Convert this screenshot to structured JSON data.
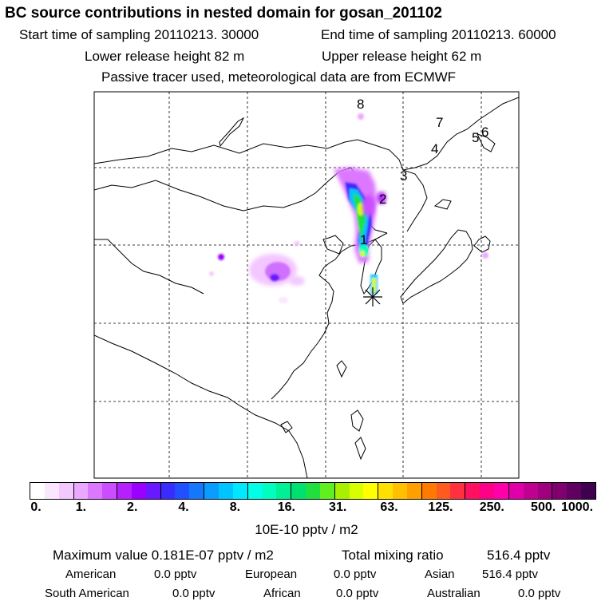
{
  "header": {
    "title": "BC  source contributions in nested domain for gosan_201102",
    "start_time": "Start time of sampling 20110213. 30000",
    "end_time": "End time of sampling 20110213. 60000",
    "lower_release": "Lower release height   82 m",
    "upper_release": "Upper release height   62 m",
    "tracer_note": "Passive tracer used, meteorological data are from ECMWF"
  },
  "map": {
    "trajectory_labels": [
      "8",
      "7",
      "6",
      "5",
      "4",
      "3",
      "2",
      "1"
    ],
    "release_marker": "receptor-star"
  },
  "colorbar": {
    "ticks": [
      "0.",
      "1.",
      "2.",
      "4.",
      "8.",
      "16.",
      "31.",
      "63.",
      "125.",
      "250.",
      "500.",
      "1000."
    ],
    "unit": "10E-10 pptv / m2",
    "colors": [
      "#ffffff",
      "#fbe6ff",
      "#f3c8ff",
      "#eaa8ff",
      "#dc78ff",
      "#cc4dff",
      "#b620ff",
      "#9a00ff",
      "#6a18ff",
      "#3a2cff",
      "#2050ff",
      "#1478ff",
      "#0a9cff",
      "#00c4ff",
      "#00e8ff",
      "#00ffe6",
      "#00ffbe",
      "#00f096",
      "#00e070",
      "#20e040",
      "#60f020",
      "#a8f000",
      "#d8ff00",
      "#ffff00",
      "#ffe000",
      "#ffc000",
      "#ffa000",
      "#ff7a00",
      "#ff5a20",
      "#ff3040",
      "#ff1060",
      "#ff0088",
      "#ff00aa",
      "#e000aa",
      "#c00090",
      "#a00080",
      "#800070",
      "#600060",
      "#400050"
    ]
  },
  "summary": {
    "max_value": "Maximum value  0.181E-07 pptv / m2",
    "total_mixing": "Total mixing ratio",
    "total_mixing_value": "516.4 pptv",
    "american_label": "American",
    "american_value": "0.0 pptv",
    "european_label": "European",
    "european_value": "0.0 pptv",
    "asian_label": "Asian",
    "asian_value": "516.4 pptv",
    "south_american_label": "South American",
    "south_american_value": "0.0 pptv",
    "african_label": "African",
    "african_value": "0.0 pptv",
    "australian_label": "Australian",
    "australian_value": "0.0 pptv"
  }
}
